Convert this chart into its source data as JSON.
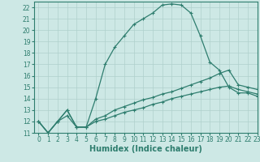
{
  "xlabel": "Humidex (Indice chaleur)",
  "xlim": [
    -0.5,
    23
  ],
  "ylim": [
    11,
    22.5
  ],
  "xticks": [
    0,
    1,
    2,
    3,
    4,
    5,
    6,
    7,
    8,
    9,
    10,
    11,
    12,
    13,
    14,
    15,
    16,
    17,
    18,
    19,
    20,
    21,
    22,
    23
  ],
  "yticks": [
    11,
    12,
    13,
    14,
    15,
    16,
    17,
    18,
    19,
    20,
    21,
    22
  ],
  "bg_color": "#cde8e5",
  "line_color": "#2e7d6e",
  "grid_color": "#afd0cc",
  "curve1_x": [
    0,
    1,
    2,
    3,
    4,
    5,
    6,
    7,
    8,
    9,
    10,
    11,
    12,
    13,
    14,
    15,
    16,
    17,
    18,
    19,
    20,
    21,
    22,
    23
  ],
  "curve1_y": [
    12.0,
    11.0,
    12.0,
    12.5,
    11.5,
    11.5,
    14.0,
    17.0,
    18.5,
    19.5,
    20.5,
    21.0,
    21.5,
    22.2,
    22.3,
    22.2,
    21.5,
    19.5,
    17.2,
    16.5,
    15.0,
    14.5,
    14.5,
    14.2
  ],
  "curve2_x": [
    0,
    1,
    2,
    3,
    4,
    5,
    6,
    7,
    8,
    9,
    10,
    11,
    12,
    13,
    14,
    15,
    16,
    17,
    18,
    19,
    20,
    21,
    22,
    23
  ],
  "curve2_y": [
    12.0,
    11.0,
    12.0,
    13.0,
    11.5,
    11.5,
    12.2,
    12.5,
    13.0,
    13.3,
    13.6,
    13.9,
    14.1,
    14.4,
    14.6,
    14.9,
    15.2,
    15.5,
    15.8,
    16.2,
    16.5,
    15.2,
    15.0,
    14.8
  ],
  "curve3_x": [
    0,
    1,
    2,
    3,
    4,
    5,
    6,
    7,
    8,
    9,
    10,
    11,
    12,
    13,
    14,
    15,
    16,
    17,
    18,
    19,
    20,
    21,
    22,
    23
  ],
  "curve3_y": [
    12.0,
    11.0,
    12.0,
    13.0,
    11.5,
    11.5,
    12.0,
    12.2,
    12.5,
    12.8,
    13.0,
    13.2,
    13.5,
    13.7,
    14.0,
    14.2,
    14.4,
    14.6,
    14.8,
    15.0,
    15.1,
    14.8,
    14.6,
    14.4
  ],
  "tick_fontsize": 5.5,
  "label_fontsize": 7
}
